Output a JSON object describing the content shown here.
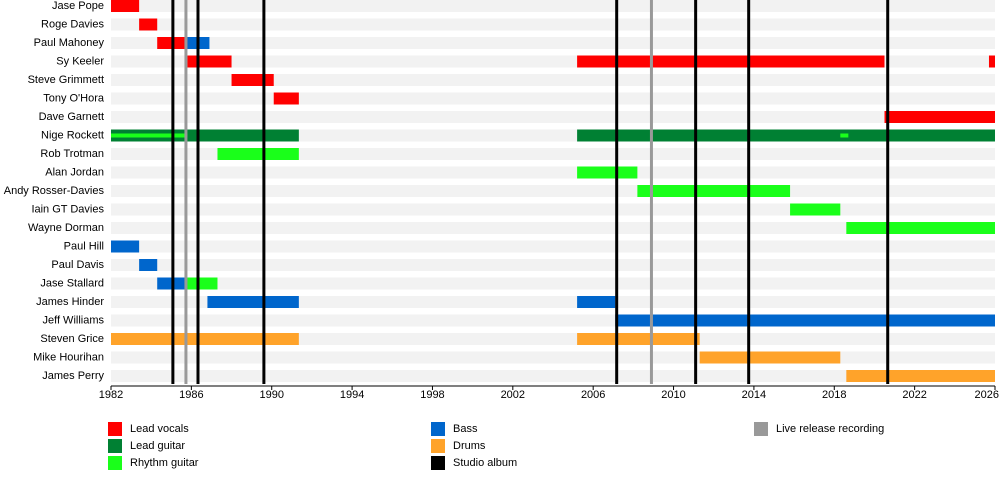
{
  "chart_data": {
    "type": "timeline",
    "xlim": [
      1982,
      2026
    ],
    "xticks": [
      1982,
      1986,
      1990,
      1994,
      1998,
      2002,
      2006,
      2010,
      2014,
      2018,
      2022,
      2026
    ],
    "series": [
      {
        "name": "Lead vocals",
        "color": "#ff0000"
      },
      {
        "name": "Lead guitar",
        "color": "#008033"
      },
      {
        "name": "Rhythm guitar",
        "color": "#1aff1a"
      },
      {
        "name": "Bass",
        "color": "#0066cc"
      },
      {
        "name": "Drums",
        "color": "#ffa32a"
      }
    ],
    "events": [
      {
        "name": "Studio album",
        "color": "#000000",
        "values": [
          1985.08,
          1986.33,
          1989.61,
          2007.17,
          2011.1,
          2013.74,
          2020.66
        ]
      },
      {
        "name": "Live release recording",
        "color": "#999999",
        "values": [
          1985.73,
          2008.9
        ]
      }
    ],
    "members": [
      {
        "name": "Jase Pope",
        "periods": [
          {
            "role": "Lead vocals",
            "start": 1982,
            "end": 1983.4
          }
        ]
      },
      {
        "name": "Roge Davies",
        "periods": [
          {
            "role": "Lead vocals",
            "start": 1983.4,
            "end": 1984.3
          }
        ]
      },
      {
        "name": "Paul Mahoney",
        "periods": [
          {
            "role": "Lead vocals",
            "start": 1984.3,
            "end": 1985.8
          },
          {
            "role": "Bass",
            "start": 1985.8,
            "end": 1986.9
          }
        ]
      },
      {
        "name": "Sy Keeler",
        "periods": [
          {
            "role": "Lead vocals",
            "start": 1985.8,
            "end": 1988.0
          },
          {
            "role": "Lead vocals",
            "start": 2005.2,
            "end": 2020.5
          },
          {
            "role": "Lead vocals",
            "start": 2025.7,
            "end": 2026
          }
        ]
      },
      {
        "name": "Steve Grimmett",
        "periods": [
          {
            "role": "Lead vocals",
            "start": 1988.0,
            "end": 1990.1
          }
        ]
      },
      {
        "name": "Tony O'Hora",
        "periods": [
          {
            "role": "Lead vocals",
            "start": 1990.1,
            "end": 1991.35
          }
        ]
      },
      {
        "name": "Dave Garnett",
        "periods": [
          {
            "role": "Lead vocals",
            "start": 2020.5,
            "end": 2026
          }
        ]
      },
      {
        "name": "Nige Rockett",
        "periods": [
          {
            "role": "Lead guitar",
            "start": 1982,
            "end": 1991.35
          },
          {
            "role": "Rhythm guitar",
            "start": 1982,
            "end": 1985.8
          },
          {
            "role": "Lead guitar",
            "start": 2005.2,
            "end": 2026
          },
          {
            "role": "Rhythm guitar",
            "start": 2018.3,
            "end": 2018.7
          }
        ]
      },
      {
        "name": "Rob Trotman",
        "periods": [
          {
            "role": "Rhythm guitar",
            "start": 1987.3,
            "end": 1991.35
          }
        ]
      },
      {
        "name": "Alan Jordan",
        "periods": [
          {
            "role": "Rhythm guitar",
            "start": 2005.2,
            "end": 2008.2
          }
        ]
      },
      {
        "name": "Andy Rosser-Davies",
        "periods": [
          {
            "role": "Rhythm guitar",
            "start": 2008.2,
            "end": 2015.8
          }
        ]
      },
      {
        "name": "Iain GT Davies",
        "periods": [
          {
            "role": "Rhythm guitar",
            "start": 2015.8,
            "end": 2018.3
          }
        ]
      },
      {
        "name": "Wayne Dorman",
        "periods": [
          {
            "role": "Rhythm guitar",
            "start": 2018.6,
            "end": 2026
          }
        ]
      },
      {
        "name": "Paul Hill",
        "periods": [
          {
            "role": "Bass",
            "start": 1982,
            "end": 1983.4
          }
        ]
      },
      {
        "name": "Paul Davis",
        "periods": [
          {
            "role": "Bass",
            "start": 1983.4,
            "end": 1984.3
          }
        ]
      },
      {
        "name": "Jase Stallard",
        "periods": [
          {
            "role": "Bass",
            "start": 1984.3,
            "end": 1985.8
          },
          {
            "role": "Rhythm guitar",
            "start": 1985.8,
            "end": 1987.3
          }
        ]
      },
      {
        "name": "James Hinder",
        "periods": [
          {
            "role": "Bass",
            "start": 1986.8,
            "end": 1991.35
          },
          {
            "role": "Bass",
            "start": 2005.2,
            "end": 2007.1
          }
        ]
      },
      {
        "name": "Jeff Williams",
        "periods": [
          {
            "role": "Bass",
            "start": 2007.1,
            "end": 2026
          }
        ]
      },
      {
        "name": "Steven Grice",
        "periods": [
          {
            "role": "Drums",
            "start": 1982,
            "end": 1991.35
          },
          {
            "role": "Drums",
            "start": 2005.2,
            "end": 2011.3
          }
        ]
      },
      {
        "name": "Mike Hourihan",
        "periods": [
          {
            "role": "Drums",
            "start": 2011.3,
            "end": 2018.3
          }
        ]
      },
      {
        "name": "James Perry",
        "periods": [
          {
            "role": "Drums",
            "start": 2018.6,
            "end": 2026
          }
        ]
      }
    ]
  }
}
